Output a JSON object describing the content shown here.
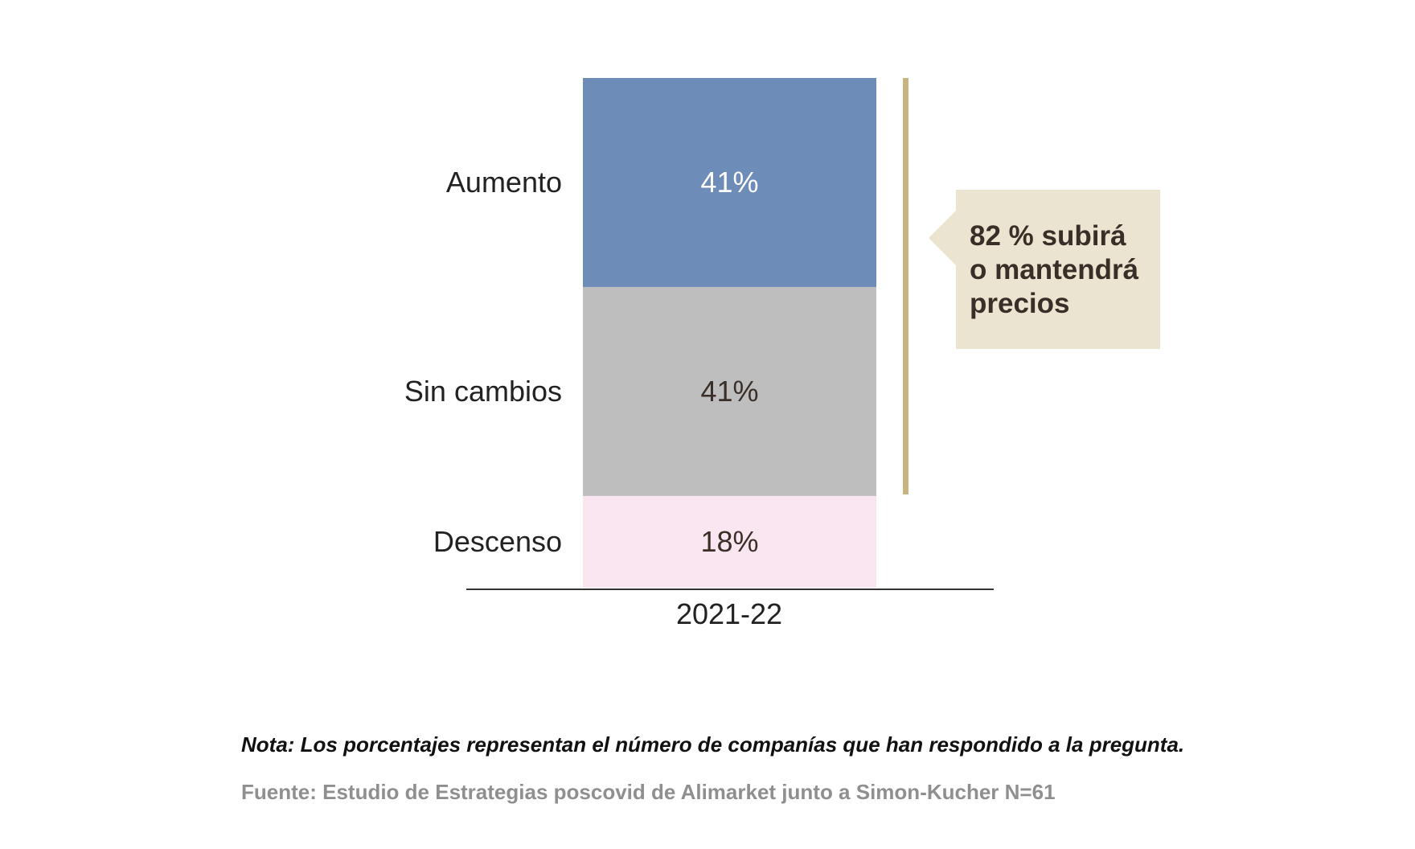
{
  "chart_data": {
    "type": "bar",
    "stacked": true,
    "categories": [
      "2021-22"
    ],
    "series": [
      {
        "name": "Descenso",
        "values": [
          18
        ],
        "color": "#f9e6f0",
        "label_color": "#3a2f28"
      },
      {
        "name": "Sin cambios",
        "values": [
          41
        ],
        "color": "#bebebe",
        "label_color": "#3a2f28"
      },
      {
        "name": "Aumento",
        "values": [
          41
        ],
        "color": "#6e8cb8",
        "label_color": "#ffffff"
      }
    ],
    "value_labels": [
      "18%",
      "41%",
      "41%"
    ],
    "ylim": [
      0,
      100
    ],
    "unit": "%",
    "annotation": {
      "lines": [
        "82 % subirá",
        "o mantendrá",
        "precios"
      ],
      "spans_series": [
        "Aumento",
        "Sin cambios"
      ],
      "box_color": "#ebe4d0",
      "bracket_color": "#c6b483"
    }
  },
  "footer": {
    "note": "Nota: Los porcentajes representan el número de companías que han respondido a la pregunta.",
    "source": "Fuente: Estudio de Estrategias poscovid de Alimarket junto a Simon-Kucher N=61"
  }
}
